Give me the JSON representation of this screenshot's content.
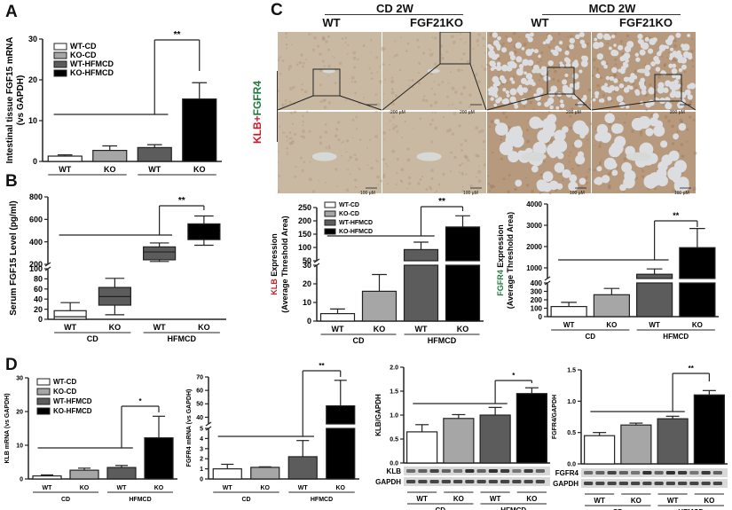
{
  "colors": {
    "wt_cd": "#ffffff",
    "ko_cd": "#a6a6a6",
    "wt_hfmcd": "#5c5c5c",
    "ko_hfmcd": "#000000",
    "klb_red": "#d0192b",
    "fgfr4_green": "#1d7a3a",
    "tissue_normal": "#c9b9a2",
    "tissue_fat": "#b79a7d"
  },
  "legend": [
    "WT-CD",
    "KO-CD",
    "WT-HFMCD",
    "KO-HFMCD"
  ],
  "groups": {
    "wt": "WT",
    "ko": "KO",
    "cd": "CD",
    "hfmcd": "HFMCD"
  },
  "panel_letters": {
    "a": "A",
    "b": "B",
    "c": "C",
    "d": "D"
  },
  "panel_c": {
    "headers": {
      "cd": "CD 2W",
      "mcd": "MCD 2W"
    },
    "subheaders": [
      "WT",
      "FGF21KO",
      "WT",
      "FGF21KO"
    ],
    "stain_label_klb": "KLB",
    "stain_label_plus": "+",
    "stain_label_fgfr4": "FGFR4",
    "scale_top": "200 µM",
    "scale_bottom": "100 µM"
  },
  "blots": {
    "klb": "KLB",
    "fgfr4": "FGFR4",
    "gapdh": "GAPDH"
  },
  "chart_data": [
    {
      "id": "A",
      "type": "bar",
      "title": "",
      "ylabel": "Intestinal tissue FGF15 mRNA (vs GAPDH)",
      "ylabel_lines": [
        "Intestinal tissue FGF15 mRNA",
        "(vs GAPDH)"
      ],
      "categories": [
        "WT-CD",
        "KO-CD",
        "WT-HFMCD",
        "KO-HFMCD"
      ],
      "values": [
        1.3,
        2.7,
        3.4,
        15.3
      ],
      "errors": [
        0.3,
        1.1,
        0.7,
        4.0
      ],
      "ylim": [
        0,
        30
      ],
      "yticks": [
        0,
        10,
        20,
        30
      ],
      "significance": {
        "between": [
          "WT-HFMCD",
          "KO-HFMCD"
        ],
        "label": "**"
      },
      "legend_position": "upper-left"
    },
    {
      "id": "B",
      "type": "box",
      "ylabel": "Serum FGF15 Level (pg/ml)",
      "categories": [
        "WT-CD",
        "KO-CD",
        "WT-HFMCD",
        "KO-HFMCD"
      ],
      "boxes": [
        {
          "min": 0,
          "q1": 0,
          "median": 5,
          "q3": 17,
          "max": 33
        },
        {
          "min": 9,
          "q1": 28,
          "median": 45,
          "q3": 63,
          "max": 81
        },
        {
          "min": 225,
          "q1": 240,
          "median": 310,
          "q3": 355,
          "max": 390
        },
        {
          "min": 370,
          "q1": 420,
          "median": 500,
          "q3": 560,
          "max": 630
        }
      ],
      "broken_axis": {
        "lower": [
          0,
          100
        ],
        "upper": [
          200,
          800
        ]
      },
      "yticks_lower": [
        0,
        20,
        40,
        60,
        80,
        100
      ],
      "yticks_upper": [
        200,
        400,
        600,
        800
      ],
      "significance": {
        "between": [
          "WT-HFMCD",
          "KO-HFMCD"
        ],
        "label": "**"
      }
    },
    {
      "id": "C-KLB",
      "type": "bar",
      "ylabel": "KLB Expression (Average Threshold Area)",
      "ylabel_lines": [
        "KLB Expression",
        "(Average Threshold Area)"
      ],
      "categories": [
        "WT-CD",
        "KO-CD",
        "WT-HFMCD",
        "KO-HFMCD"
      ],
      "values": [
        4,
        16,
        92,
        177
      ],
      "errors": [
        2.5,
        9,
        28,
        42
      ],
      "broken_axis": {
        "lower": [
          0,
          30
        ],
        "upper": [
          50,
          250
        ]
      },
      "yticks_lower": [
        0,
        10,
        20,
        30
      ],
      "yticks_upper": [
        50,
        100,
        150,
        200,
        250
      ],
      "significance": {
        "between": [
          "WT-HFMCD",
          "KO-HFMCD"
        ],
        "label": "**"
      }
    },
    {
      "id": "C-FGFR4",
      "type": "bar",
      "ylabel": "FGFR4 Expression (Average Threshold Area)",
      "ylabel_lines": [
        "FGFR4 Expression",
        "(Average Threshold Area)"
      ],
      "categories": [
        "WT-CD",
        "KO-CD",
        "WT-HFMCD",
        "KO-HFMCD"
      ],
      "values": [
        120,
        260,
        700,
        1950
      ],
      "errors": [
        50,
        75,
        250,
        900
      ],
      "broken_axis": {
        "lower": [
          0,
          400
        ],
        "upper": [
          500,
          4000
        ]
      },
      "yticks_lower": [
        0,
        100,
        200,
        300,
        400
      ],
      "yticks_upper": [
        1000,
        2000,
        3000,
        4000
      ],
      "significance": {
        "between": [
          "WT-HFMCD",
          "KO-HFMCD"
        ],
        "label": "**"
      }
    },
    {
      "id": "D-KLB-mRNA",
      "type": "bar",
      "ylabel": "KLB mRNA (vs GAPDH)",
      "categories": [
        "WT-CD",
        "KO-CD",
        "WT-HFMCD",
        "KO-HFMCD"
      ],
      "values": [
        0.9,
        2.6,
        3.4,
        12.2
      ],
      "errors": [
        0.3,
        0.6,
        0.6,
        6.4
      ],
      "ylim": [
        0,
        30
      ],
      "yticks": [
        0,
        10,
        20,
        30
      ],
      "significance": {
        "between": [
          "WT-HFMCD",
          "KO-HFMCD"
        ],
        "label": "*"
      }
    },
    {
      "id": "D-FGFR4-mRNA",
      "type": "bar",
      "ylabel": "FGFR4 mRNA (vs GAPDH)",
      "categories": [
        "WT-CD",
        "KO-CD",
        "WT-HFMCD",
        "KO-HFMCD"
      ],
      "values": [
        1.0,
        1.15,
        2.2,
        48.5
      ],
      "errors": [
        0.45,
        0.05,
        1.6,
        19
      ],
      "broken_axis": {
        "lower": [
          0,
          5
        ],
        "upper": [
          35,
          70
        ]
      },
      "yticks_lower": [
        0,
        1,
        2,
        3,
        4,
        5
      ],
      "yticks_upper": [
        40,
        50,
        60,
        70
      ],
      "significance": {
        "between": [
          "WT-HFMCD",
          "KO-HFMCD"
        ],
        "label": "**"
      }
    },
    {
      "id": "D-KLB-protein",
      "type": "bar",
      "ylabel": "KLB/GAPDH",
      "categories": [
        "WT-CD",
        "KO-CD",
        "WT-HFMCD",
        "KO-HFMCD"
      ],
      "values": [
        0.65,
        0.93,
        1.0,
        1.45
      ],
      "errors": [
        0.15,
        0.08,
        0.16,
        0.12
      ],
      "ylim": [
        0,
        2.0
      ],
      "yticks": [
        0.0,
        0.5,
        1.0,
        1.5,
        2.0
      ],
      "significance": {
        "between": [
          "WT-HFMCD",
          "KO-HFMCD"
        ],
        "label": "*"
      }
    },
    {
      "id": "D-FGFR4-protein",
      "type": "bar",
      "ylabel": "FGFR4/GAPDH",
      "categories": [
        "WT-CD",
        "KO-CD",
        "WT-HFMCD",
        "KO-HFMCD"
      ],
      "values": [
        0.45,
        0.62,
        0.72,
        1.1
      ],
      "errors": [
        0.05,
        0.03,
        0.04,
        0.07
      ],
      "ylim": [
        0,
        1.5
      ],
      "yticks": [
        0.0,
        0.5,
        1.0,
        1.5
      ],
      "significance": {
        "between": [
          "WT-HFMCD",
          "KO-HFMCD"
        ],
        "label": "**"
      }
    }
  ]
}
